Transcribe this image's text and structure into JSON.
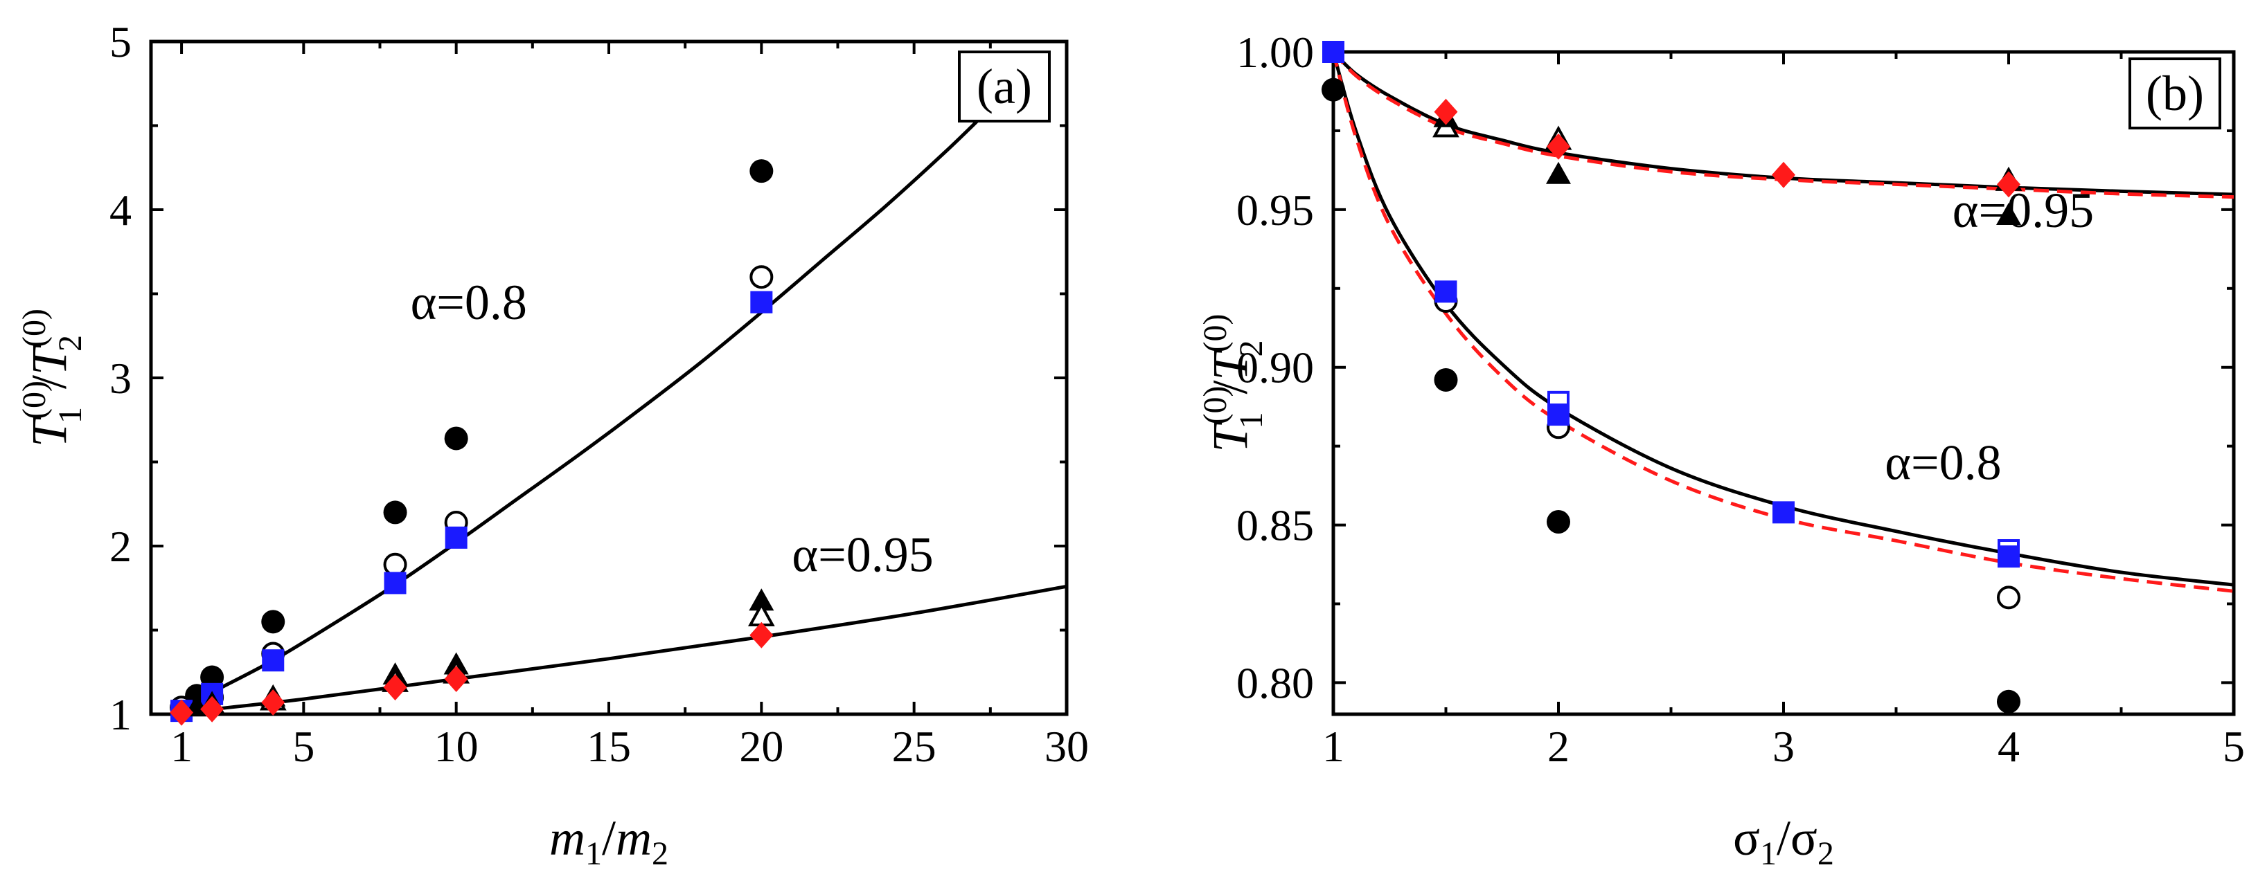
{
  "chart_data": [
    {
      "panel": "a",
      "type": "scatter",
      "panel_label": "(a)",
      "xlabel": {
        "main": "m",
        "sub1": "1",
        "sep": "/",
        "main2": "m",
        "sub2": "2"
      },
      "ylabel": {
        "main": "T",
        "sup": "(0)",
        "sub1": "1",
        "sep": "/",
        "main2": "T",
        "sub2": "2"
      },
      "xlim": [
        0,
        30
      ],
      "ylim": [
        1,
        5
      ],
      "xticks": [
        1,
        5,
        10,
        15,
        20,
        25,
        30
      ],
      "yticks": [
        1,
        2,
        3,
        4,
        5
      ],
      "annotations": [
        {
          "text": "α=0.8",
          "x": 8.5,
          "y": 3.35
        },
        {
          "text": "α=0.95",
          "x": 21.0,
          "y": 1.85
        }
      ],
      "curves": [
        {
          "name": "theory α=0.8",
          "color": "#000000",
          "dash": "solid",
          "x": [
            1,
            2,
            4,
            6,
            8,
            10,
            12,
            14,
            16,
            18,
            20,
            22,
            24,
            26,
            27.2
          ],
          "y": [
            1.03,
            1.13,
            1.32,
            1.54,
            1.77,
            2.02,
            2.28,
            2.54,
            2.81,
            3.09,
            3.39,
            3.7,
            4.01,
            4.34,
            4.55
          ]
        },
        {
          "name": "theory α=0.95",
          "color": "#000000",
          "dash": "solid",
          "x": [
            1,
            5,
            10,
            15,
            20,
            25,
            30
          ],
          "y": [
            1.01,
            1.09,
            1.21,
            1.33,
            1.46,
            1.6,
            1.76
          ]
        }
      ],
      "series": [
        {
          "name": "filled circles",
          "marker": "circle-filled",
          "color": "#000000",
          "x": [
            1.5,
            2,
            4,
            8,
            10,
            20
          ],
          "y": [
            1.11,
            1.22,
            1.55,
            2.2,
            2.64,
            4.23
          ]
        },
        {
          "name": "open circles",
          "marker": "circle-open",
          "color": "#000000",
          "x": [
            1,
            2,
            4,
            8,
            10,
            20
          ],
          "y": [
            1.04,
            1.1,
            1.36,
            1.89,
            2.14,
            3.6
          ]
        },
        {
          "name": "blue squares",
          "marker": "square-filled",
          "color": "#1a1aff",
          "x": [
            1,
            2,
            4,
            8,
            10,
            20
          ],
          "y": [
            1.02,
            1.12,
            1.32,
            1.78,
            2.05,
            3.45
          ]
        },
        {
          "name": "filled triangles",
          "marker": "triangle-filled",
          "color": "#000000",
          "x": [
            1.5,
            2,
            4,
            8,
            10,
            20
          ],
          "y": [
            1.04,
            1.06,
            1.1,
            1.23,
            1.29,
            1.67
          ]
        },
        {
          "name": "open triangles",
          "marker": "triangle-open",
          "color": "#000000",
          "x": [
            4,
            8,
            10,
            20
          ],
          "y": [
            1.08,
            1.19,
            1.24,
            1.58
          ]
        },
        {
          "name": "red diamonds",
          "marker": "diamond-filled",
          "color": "#ff1a1a",
          "x": [
            1,
            2,
            4,
            8,
            10,
            20
          ],
          "y": [
            1.01,
            1.03,
            1.07,
            1.16,
            1.21,
            1.47
          ]
        }
      ]
    },
    {
      "panel": "b",
      "type": "scatter",
      "panel_label": "(b)",
      "xlabel": {
        "main": "σ",
        "sub1": "1",
        "sep": "/",
        "main2": "σ",
        "sub2": "2"
      },
      "ylabel": {
        "main": "T",
        "sup": "(0)",
        "sub1": "1",
        "sep": "/",
        "main2": "T",
        "sub2": "2"
      },
      "xlim": [
        1,
        5
      ],
      "ylim": [
        0.79,
        1.0
      ],
      "xticks": [
        1,
        2,
        3,
        4,
        5
      ],
      "yticks": [
        0.8,
        0.85,
        0.9,
        0.95,
        1.0
      ],
      "ytick_labels": [
        "0.80",
        "0.85",
        "0.90",
        "0.95",
        "1.00"
      ],
      "annotations": [
        {
          "text": "α=0.95",
          "x": 3.75,
          "y": 0.9445
        },
        {
          "text": "α=0.8",
          "x": 3.45,
          "y": 0.8645
        }
      ],
      "curves": [
        {
          "name": "theory α=0.95",
          "color": "#000000",
          "dash": "solid",
          "x": [
            1,
            1.1,
            1.25,
            1.5,
            1.75,
            2,
            2.5,
            3,
            3.5,
            4,
            4.5,
            5
          ],
          "y": [
            1.0,
            0.993,
            0.986,
            0.977,
            0.972,
            0.968,
            0.963,
            0.96,
            0.9585,
            0.957,
            0.9558,
            0.9548
          ]
        },
        {
          "name": "dashed α=0.95",
          "color": "#ff1a1a",
          "dash": "dashed",
          "x": [
            1,
            1.1,
            1.25,
            1.5,
            1.75,
            2,
            2.5,
            3,
            3.5,
            4,
            4.5,
            5
          ],
          "y": [
            1.0,
            0.9925,
            0.985,
            0.976,
            0.971,
            0.967,
            0.962,
            0.9595,
            0.958,
            0.9565,
            0.955,
            0.954
          ]
        },
        {
          "name": "theory α=0.8",
          "color": "#000000",
          "dash": "solid",
          "x": [
            1,
            1.1,
            1.25,
            1.5,
            1.75,
            2,
            2.5,
            3,
            3.5,
            4,
            4.5,
            5
          ],
          "y": [
            1.0,
            0.975,
            0.948,
            0.92,
            0.901,
            0.887,
            0.868,
            0.856,
            0.848,
            0.841,
            0.835,
            0.831
          ]
        },
        {
          "name": "dashed α=0.8",
          "color": "#ff1a1a",
          "dash": "dashed",
          "x": [
            1,
            1.1,
            1.25,
            1.5,
            1.75,
            2,
            2.5,
            3,
            3.5,
            4,
            4.5,
            5
          ],
          "y": [
            1.0,
            0.973,
            0.945,
            0.917,
            0.897,
            0.883,
            0.864,
            0.852,
            0.845,
            0.838,
            0.833,
            0.829
          ]
        }
      ],
      "series": [
        {
          "name": "filled circles",
          "marker": "circle-filled",
          "color": "#000000",
          "x": [
            1,
            1.5,
            2,
            4
          ],
          "y": [
            0.988,
            0.896,
            0.851,
            0.794
          ]
        },
        {
          "name": "open circles",
          "marker": "circle-open",
          "color": "#000000",
          "x": [
            1.5,
            2,
            4
          ],
          "y": [
            0.921,
            0.881,
            0.827
          ]
        },
        {
          "name": "open squares",
          "marker": "square-open",
          "color": "#1a1aff",
          "x": [
            2,
            4
          ],
          "y": [
            0.889,
            0.842
          ]
        },
        {
          "name": "blue squares",
          "marker": "square-filled",
          "color": "#1a1aff",
          "x": [
            1,
            1.5,
            2,
            3,
            4
          ],
          "y": [
            1.0,
            0.924,
            0.885,
            0.854,
            0.84
          ]
        },
        {
          "name": "open triangles",
          "marker": "triangle-open",
          "color": "#000000",
          "x": [
            1.5,
            2,
            4
          ],
          "y": [
            0.976,
            0.972,
            0.959
          ]
        },
        {
          "name": "filled triangles",
          "marker": "triangle-filled",
          "color": "#000000",
          "x": [
            1.5,
            2,
            4
          ],
          "y": [
            0.979,
            0.961,
            0.948
          ]
        },
        {
          "name": "red diamonds",
          "marker": "diamond-filled",
          "color": "#ff1a1a",
          "x": [
            1.5,
            2,
            3,
            4
          ],
          "y": [
            0.981,
            0.97,
            0.961,
            0.958
          ]
        }
      ]
    }
  ]
}
